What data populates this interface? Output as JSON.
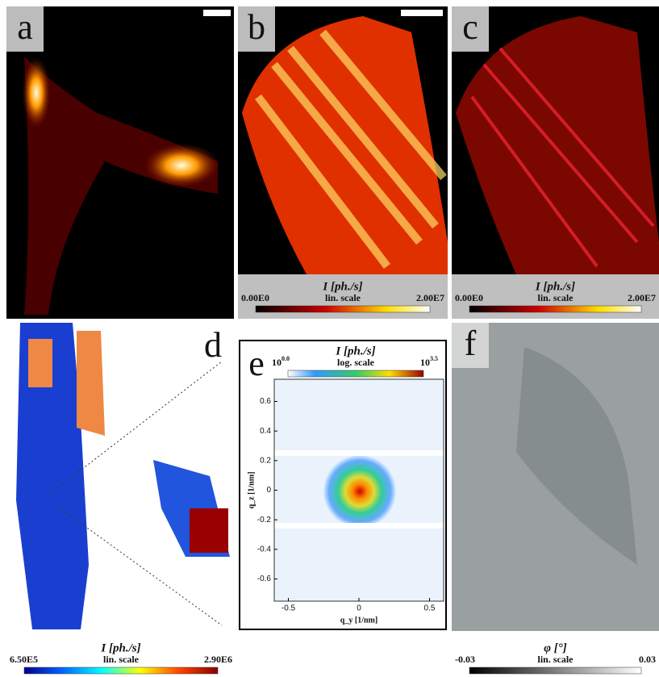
{
  "panels": {
    "a": {
      "label": "a"
    },
    "b": {
      "label": "b",
      "colorbar": {
        "title": "I [ph./s]",
        "min": "0.00E0",
        "scale": "lin. scale",
        "max": "2.00E7"
      }
    },
    "c": {
      "label": "c",
      "colorbar": {
        "title": "I [ph./s]",
        "min": "0.00E0",
        "scale": "lin. scale",
        "max": "2.00E7"
      }
    },
    "d": {
      "label": "d",
      "colorbar": {
        "title": "I [ph./s]",
        "min": "6.50E5",
        "scale": "lin. scale",
        "max": "2.90E6"
      }
    },
    "e": {
      "label": "e",
      "colorbar": {
        "title": "I [ph./s]",
        "min": {
          "base": "10",
          "exp": "0.0"
        },
        "scale": "log. scale",
        "max": {
          "base": "10",
          "exp": "3.5"
        }
      },
      "xlabel": "q_y [1/nm]",
      "ylabel": "q_z [1/nm]",
      "xlim": [
        -0.6,
        0.6
      ],
      "ylim": [
        -0.75,
        0.75
      ],
      "xticks": [
        -0.5,
        0,
        0.5
      ],
      "yticks": [
        0.6,
        0.4,
        0.2,
        0,
        -0.2,
        -0.4,
        -0.6
      ]
    },
    "f": {
      "label": "f",
      "colorbar": {
        "title": "φ [°]",
        "min": "-0.03",
        "scale": "lin. scale",
        "max": "0.03"
      }
    }
  }
}
